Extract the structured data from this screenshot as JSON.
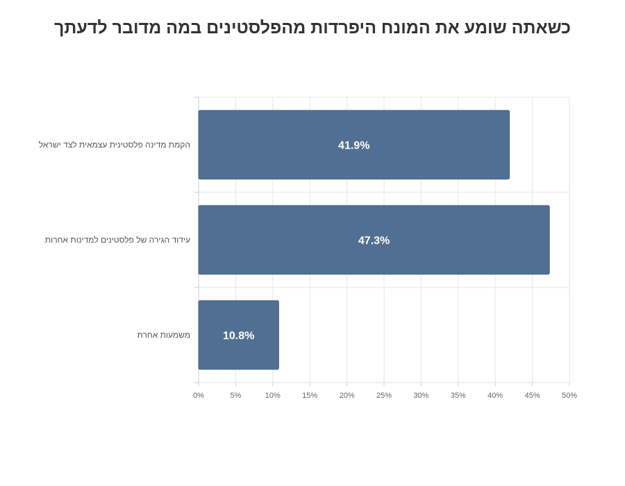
{
  "chart_data": {
    "type": "bar",
    "orientation": "horizontal",
    "title": "כשאתה שומע את המונח היפרדות מהפלסטינים במה מדובר לדעתך",
    "categories": [
      "הקמת מדינה פלסטינית עצמאית לצד ישראל",
      "עידוד הגירה של פלסטינים למדינות אחרות",
      "משמעות אחרת"
    ],
    "values": [
      41.9,
      47.3,
      10.8
    ],
    "data_labels": [
      "41.9%",
      "47.3%",
      "10.8%"
    ],
    "xlim": [
      0,
      50
    ],
    "x_ticks": [
      0,
      5,
      10,
      15,
      20,
      25,
      30,
      35,
      40,
      45,
      50
    ],
    "x_tick_labels": [
      "0%",
      "5%",
      "10%",
      "15%",
      "20%",
      "25%",
      "30%",
      "35%",
      "40%",
      "45%",
      "50%"
    ],
    "bar_color": "#516f92",
    "grid": true,
    "legend": "none"
  }
}
